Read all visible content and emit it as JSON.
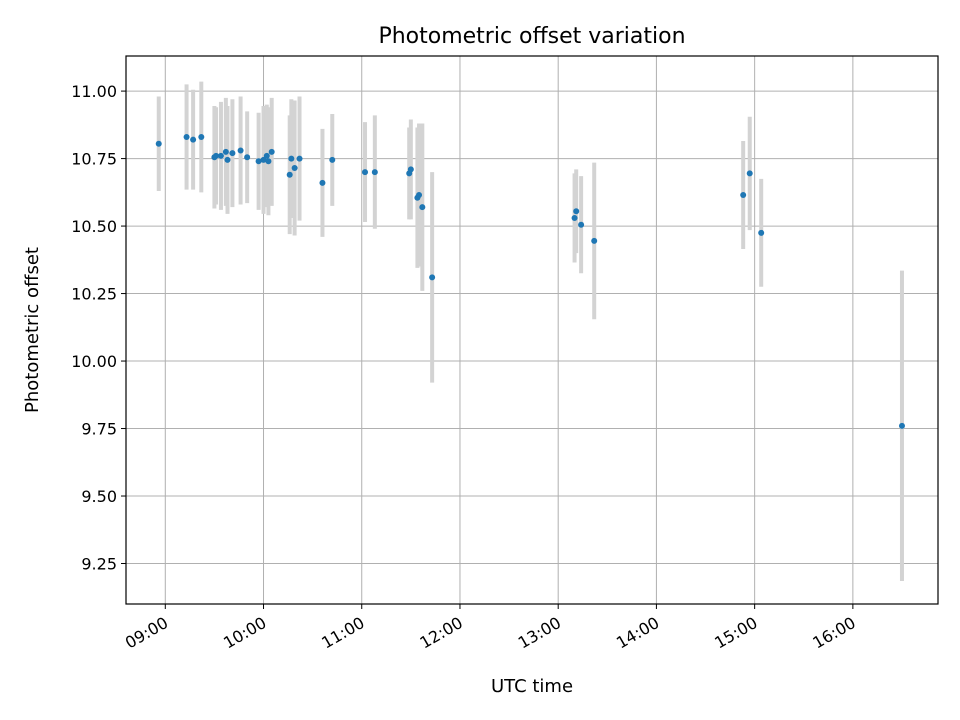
{
  "chart_data": {
    "type": "scatter",
    "title": "Photometric offset variation",
    "xlabel": "UTC time",
    "ylabel": "Photometric offset",
    "x_axis_kind": "time",
    "xlim": [
      "08:36",
      "16:52"
    ],
    "ylim": [
      9.1,
      11.13
    ],
    "x_ticks": [
      "09:00",
      "10:00",
      "11:00",
      "12:00",
      "13:00",
      "14:00",
      "15:00",
      "16:00"
    ],
    "y_ticks": [
      "9.25",
      "9.50",
      "9.75",
      "10.00",
      "10.25",
      "10.50",
      "10.75",
      "11.00"
    ],
    "grid": true,
    "marker_color": "#1f77b4",
    "errorbar_color": "#d3d3d3",
    "points": [
      {
        "x": "08:56",
        "y": 10.805,
        "err": 0.175
      },
      {
        "x": "09:13",
        "y": 10.83,
        "err": 0.195
      },
      {
        "x": "09:17",
        "y": 10.82,
        "err": 0.185
      },
      {
        "x": "09:22",
        "y": 10.83,
        "err": 0.205
      },
      {
        "x": "09:30",
        "y": 10.755,
        "err": 0.19
      },
      {
        "x": "09:31",
        "y": 10.76,
        "err": 0.18
      },
      {
        "x": "09:34",
        "y": 10.76,
        "err": 0.2
      },
      {
        "x": "09:37",
        "y": 10.775,
        "err": 0.2
      },
      {
        "x": "09:38",
        "y": 10.745,
        "err": 0.2
      },
      {
        "x": "09:41",
        "y": 10.77,
        "err": 0.2
      },
      {
        "x": "09:46",
        "y": 10.78,
        "err": 0.2
      },
      {
        "x": "09:50",
        "y": 10.755,
        "err": 0.17
      },
      {
        "x": "09:57",
        "y": 10.74,
        "err": 0.18
      },
      {
        "x": "10:00",
        "y": 10.745,
        "err": 0.2
      },
      {
        "x": "10:02",
        "y": 10.76,
        "err": 0.19
      },
      {
        "x": "10:03",
        "y": 10.74,
        "err": 0.2
      },
      {
        "x": "10:05",
        "y": 10.775,
        "err": 0.2
      },
      {
        "x": "10:16",
        "y": 10.69,
        "err": 0.22
      },
      {
        "x": "10:17",
        "y": 10.75,
        "err": 0.22
      },
      {
        "x": "10:19",
        "y": 10.715,
        "err": 0.25
      },
      {
        "x": "10:22",
        "y": 10.75,
        "err": 0.23
      },
      {
        "x": "10:36",
        "y": 10.66,
        "err": 0.2
      },
      {
        "x": "10:42",
        "y": 10.745,
        "err": 0.17
      },
      {
        "x": "11:02",
        "y": 10.7,
        "err": 0.185
      },
      {
        "x": "11:08",
        "y": 10.7,
        "err": 0.21
      },
      {
        "x": "11:29",
        "y": 10.695,
        "err": 0.17
      },
      {
        "x": "11:30",
        "y": 10.71,
        "err": 0.185
      },
      {
        "x": "11:34",
        "y": 10.605,
        "err": 0.26
      },
      {
        "x": "11:35",
        "y": 10.615,
        "err": 0.265
      },
      {
        "x": "11:37",
        "y": 10.57,
        "err": 0.31
      },
      {
        "x": "11:43",
        "y": 10.31,
        "err": 0.39
      },
      {
        "x": "13:10",
        "y": 10.53,
        "err": 0.165
      },
      {
        "x": "13:11",
        "y": 10.555,
        "err": 0.155
      },
      {
        "x": "13:14",
        "y": 10.505,
        "err": 0.18
      },
      {
        "x": "13:22",
        "y": 10.445,
        "err": 0.29
      },
      {
        "x": "14:53",
        "y": 10.615,
        "err": 0.2
      },
      {
        "x": "14:57",
        "y": 10.695,
        "err": 0.21
      },
      {
        "x": "15:04",
        "y": 10.475,
        "err": 0.2
      },
      {
        "x": "16:30",
        "y": 9.76,
        "err": 0.575
      }
    ]
  }
}
